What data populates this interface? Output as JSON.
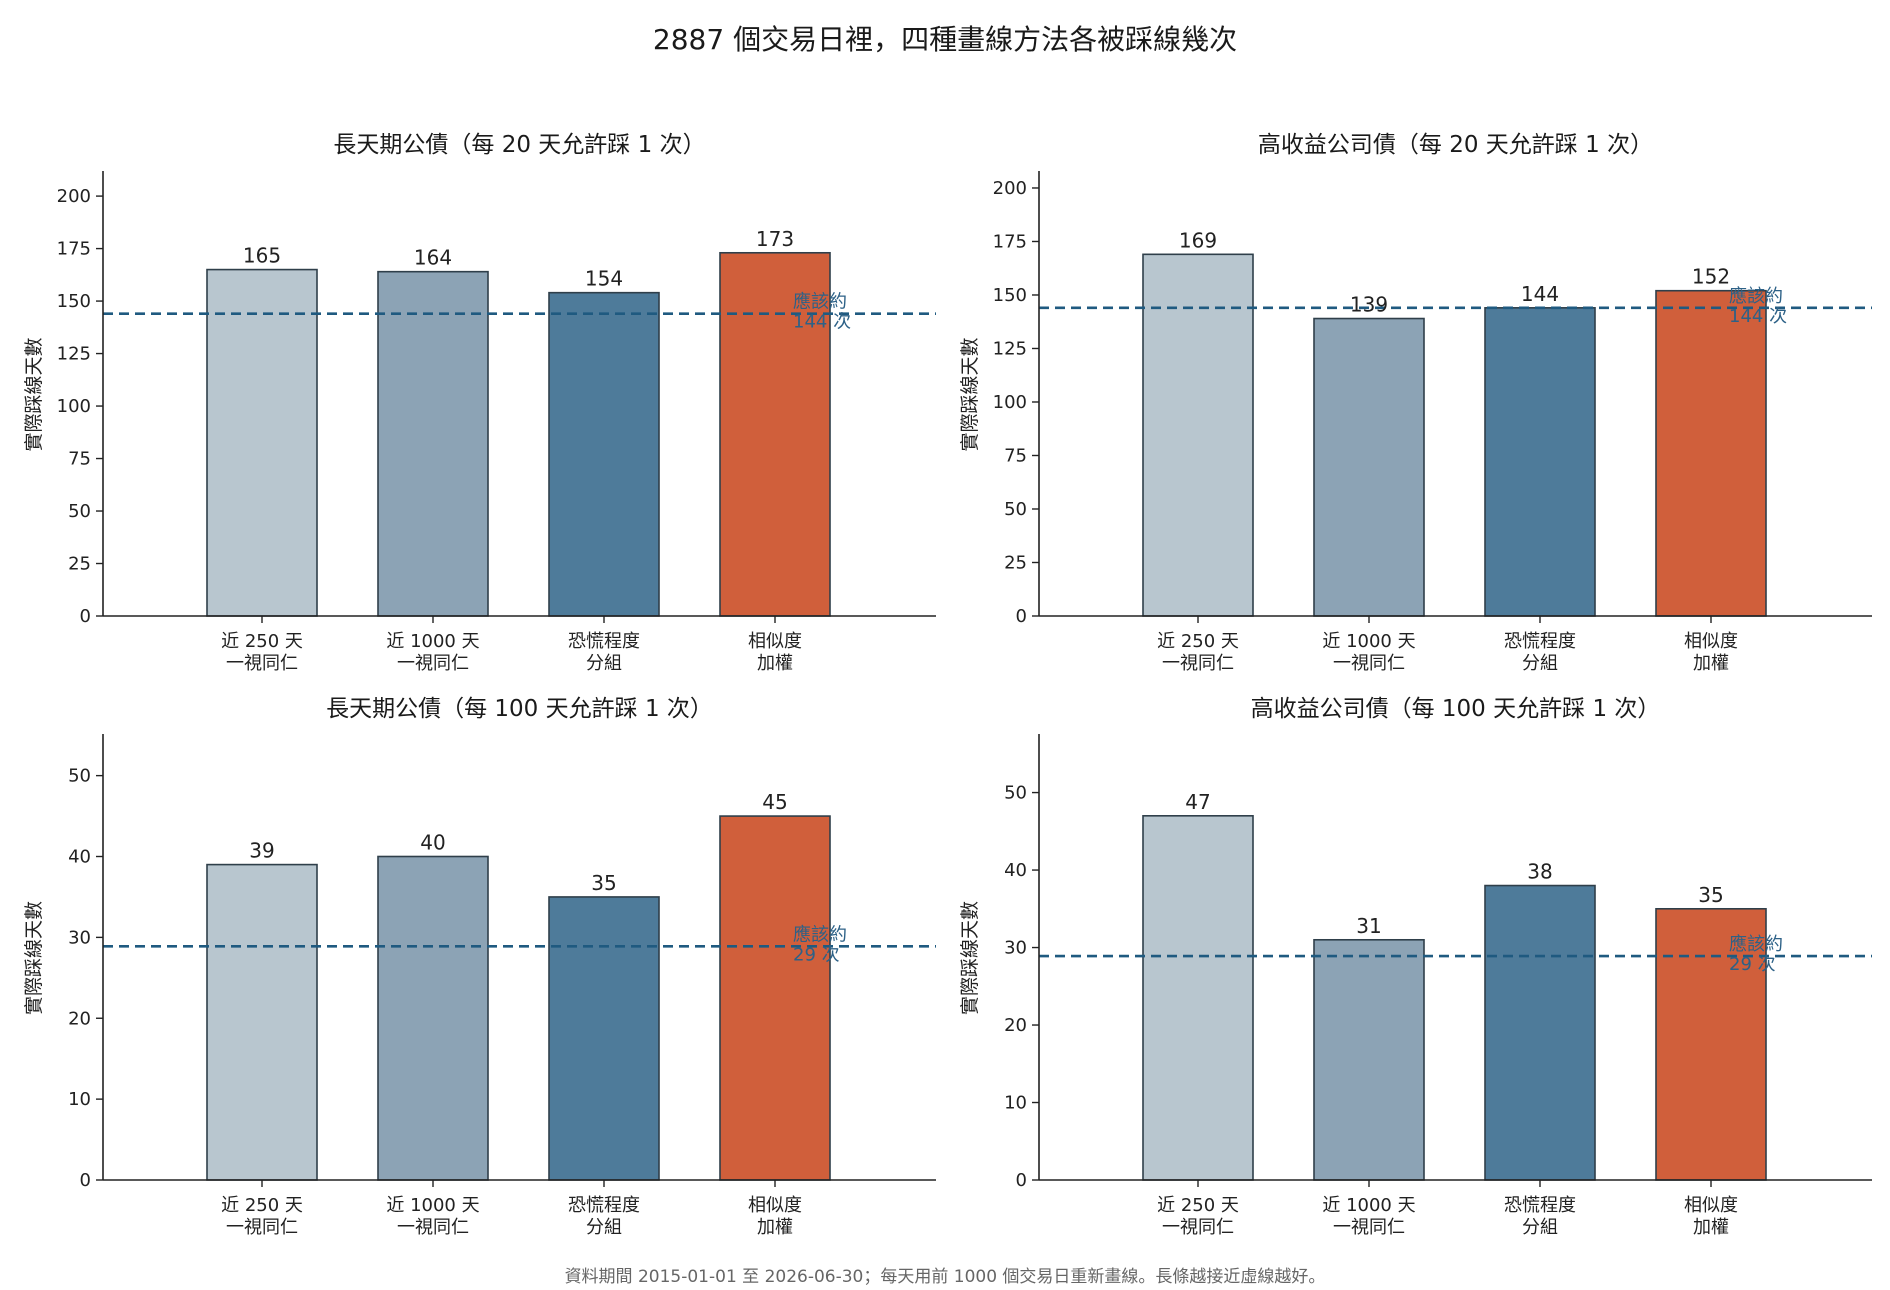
{
  "title": "2887 個交易日裡，四種畫線方法各被踩線幾次",
  "footer": "資料期間 2015-01-01 至 2026-06-30；每天用前 1000 個交易日重新畫線。長條越接近虛線越好。",
  "colors": {
    "bars": [
      "#b8c6cf",
      "#8ca3b5",
      "#4e7b9a",
      "#d05f3b"
    ],
    "bar_edge": "#2f3f4a",
    "reference": "#1f5a80",
    "reference_text": "#2d6187",
    "axis": "#222222"
  },
  "chart_data": [
    {
      "type": "bar",
      "title": "長天期公債（每 20 天允許踩 1 次）",
      "ylabel": "實際踩線天數",
      "categories": [
        [
          "近 250 天",
          "一視同仁"
        ],
        [
          "近 1000 天",
          "一視同仁"
        ],
        [
          "恐慌程度",
          "分組"
        ],
        [
          "相似度",
          "加權"
        ]
      ],
      "values": [
        165,
        164,
        154,
        173
      ],
      "ylim": [
        0,
        211
      ],
      "yticks": [
        0,
        25,
        50,
        75,
        100,
        125,
        150,
        175,
        200
      ],
      "reference": {
        "value": 144,
        "label": [
          "應該約",
          "144 次"
        ]
      }
    },
    {
      "type": "bar",
      "title": "高收益公司債（每 20 天允許踩 1 次）",
      "ylabel": "實際踩線天數",
      "categories": [
        [
          "近 250 天",
          "一視同仁"
        ],
        [
          "近 1000 天",
          "一視同仁"
        ],
        [
          "恐慌程度",
          "分組"
        ],
        [
          "相似度",
          "加權"
        ]
      ],
      "values": [
        169,
        139,
        144,
        152
      ],
      "ylim": [
        0,
        207
      ],
      "yticks": [
        0,
        25,
        50,
        75,
        100,
        125,
        150,
        175,
        200
      ],
      "reference": {
        "value": 144,
        "label": [
          "應該約",
          "144 次"
        ]
      }
    },
    {
      "type": "bar",
      "title": "長天期公債（每 100 天允許踩 1 次）",
      "ylabel": "實際踩線天數",
      "categories": [
        [
          "近 250 天",
          "一視同仁"
        ],
        [
          "近 1000 天",
          "一視同仁"
        ],
        [
          "恐慌程度",
          "分組"
        ],
        [
          "相似度",
          "加權"
        ]
      ],
      "values": [
        39,
        40,
        35,
        45
      ],
      "ylim": [
        0,
        54.9
      ],
      "yticks": [
        0,
        10,
        20,
        30,
        40,
        50
      ],
      "reference": {
        "value": 28.9,
        "label": [
          "應該約",
          "29 次"
        ]
      }
    },
    {
      "type": "bar",
      "title": "高收益公司債（每 100 天允許踩 1 次）",
      "ylabel": "實際踩線天數",
      "categories": [
        [
          "近 250 天",
          "一視同仁"
        ],
        [
          "近 1000 天",
          "一視同仁"
        ],
        [
          "恐慌程度",
          "分組"
        ],
        [
          "相似度",
          "加權"
        ]
      ],
      "values": [
        47,
        31,
        38,
        35
      ],
      "ylim": [
        0,
        57.3
      ],
      "yticks": [
        0,
        10,
        20,
        30,
        40,
        50
      ],
      "reference": {
        "value": 28.9,
        "label": [
          "應該約",
          "29 次"
        ]
      }
    }
  ]
}
